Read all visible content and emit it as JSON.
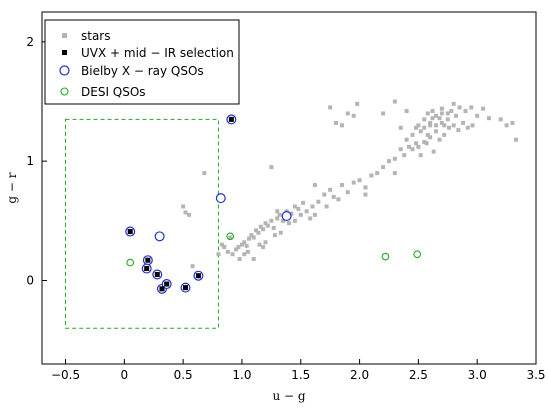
{
  "chart_data": {
    "type": "scatter",
    "xlabel": "u − g",
    "ylabel": "g − r",
    "xlim": [
      -0.7,
      3.5
    ],
    "ylim": [
      -0.7,
      2.25
    ],
    "xticks": [
      -0.5,
      0.0,
      0.5,
      1.0,
      1.5,
      2.0,
      2.5,
      3.0,
      3.5
    ],
    "xtick_labels": [
      "−0.5",
      "0",
      "0.5",
      "1.0",
      "1.5",
      "2.0",
      "2.5",
      "3.0",
      "3.5"
    ],
    "yticks": [
      0,
      1,
      2
    ],
    "ytick_labels": [
      "0",
      "1",
      "2"
    ],
    "legend": {
      "position": "top-left",
      "entries": [
        "stars",
        "UVX + mid − IR selection",
        "Bielby X − ray QSOs",
        "DESI QSOs"
      ]
    },
    "selection_box": {
      "x": [
        -0.5,
        0.8
      ],
      "y": [
        -0.4,
        1.35
      ],
      "color": "#22aa22"
    },
    "series": [
      {
        "name": "stars",
        "color": "#b4b4b4",
        "marker": "square",
        "points": [
          [
            0.5,
            0.62
          ],
          [
            0.52,
            0.57
          ],
          [
            0.55,
            0.55
          ],
          [
            0.58,
            0.12
          ],
          [
            0.62,
            0.06
          ],
          [
            0.68,
            0.9
          ],
          [
            0.8,
            0.22
          ],
          [
            0.83,
            0.3
          ],
          [
            0.85,
            0.28
          ],
          [
            0.88,
            0.24
          ],
          [
            0.9,
            0.36
          ],
          [
            0.92,
            0.22
          ],
          [
            0.95,
            0.26
          ],
          [
            0.97,
            0.28
          ],
          [
            1.0,
            0.3
          ],
          [
            1.02,
            0.32
          ],
          [
            1.04,
            0.29
          ],
          [
            1.06,
            0.35
          ],
          [
            1.08,
            0.38
          ],
          [
            1.1,
            0.36
          ],
          [
            1.12,
            0.42
          ],
          [
            1.14,
            0.4
          ],
          [
            1.16,
            0.45
          ],
          [
            1.18,
            0.43
          ],
          [
            1.2,
            0.48
          ],
          [
            1.22,
            0.46
          ],
          [
            1.25,
            0.5
          ],
          [
            1.27,
            0.44
          ],
          [
            1.3,
            0.52
          ],
          [
            1.32,
            0.55
          ],
          [
            1.35,
            0.5
          ],
          [
            1.38,
            0.58
          ],
          [
            1.42,
            0.56
          ],
          [
            1.45,
            0.62
          ],
          [
            1.48,
            0.6
          ],
          [
            1.52,
            0.65
          ],
          [
            1.55,
            0.58
          ],
          [
            1.6,
            0.62
          ],
          [
            1.62,
            0.55
          ],
          [
            1.65,
            0.66
          ],
          [
            1.7,
            0.72
          ],
          [
            1.72,
            0.62
          ],
          [
            1.75,
            0.76
          ],
          [
            1.78,
            0.7
          ],
          [
            1.82,
            0.68
          ],
          [
            1.85,
            0.8
          ],
          [
            1.9,
            0.74
          ],
          [
            1.95,
            0.82
          ],
          [
            2.0,
            0.84
          ],
          [
            2.05,
            0.78
          ],
          [
            2.1,
            0.88
          ],
          [
            2.15,
            0.9
          ],
          [
            2.2,
            0.95
          ],
          [
            2.25,
            1.0
          ],
          [
            2.3,
            1.02
          ],
          [
            2.35,
            1.1
          ],
          [
            2.38,
            1.05
          ],
          [
            2.4,
            1.18
          ],
          [
            2.42,
            1.12
          ],
          [
            2.45,
            1.22
          ],
          [
            2.48,
            1.28
          ],
          [
            2.5,
            1.3
          ],
          [
            2.52,
            1.25
          ],
          [
            2.55,
            1.35
          ],
          [
            2.58,
            1.4
          ],
          [
            2.6,
            1.32
          ],
          [
            2.62,
            1.42
          ],
          [
            2.65,
            1.38
          ],
          [
            2.68,
            1.36
          ],
          [
            2.7,
            1.44
          ],
          [
            2.72,
            1.3
          ],
          [
            2.75,
            1.4
          ],
          [
            2.78,
            1.42
          ],
          [
            2.8,
            1.48
          ],
          [
            2.82,
            1.38
          ],
          [
            2.85,
            1.45
          ],
          [
            2.9,
            1.42
          ],
          [
            2.95,
            1.45
          ],
          [
            3.0,
            1.38
          ],
          [
            3.05,
            1.44
          ],
          [
            3.1,
            1.36
          ],
          [
            3.2,
            1.35
          ],
          [
            3.25,
            1.3
          ],
          [
            3.3,
            1.32
          ],
          [
            3.33,
            1.18
          ],
          [
            2.3,
            1.5
          ],
          [
            2.4,
            1.42
          ],
          [
            2.45,
            1.1
          ],
          [
            2.5,
            1.12
          ],
          [
            2.55,
            1.16
          ],
          [
            2.6,
            1.2
          ],
          [
            2.65,
            1.25
          ],
          [
            2.7,
            1.32
          ],
          [
            2.75,
            1.35
          ],
          [
            2.35,
            1.28
          ],
          [
            2.2,
            1.4
          ],
          [
            1.98,
            1.48
          ],
          [
            1.95,
            1.38
          ],
          [
            1.9,
            1.4
          ],
          [
            1.85,
            1.3
          ],
          [
            1.8,
            1.32
          ],
          [
            1.75,
            1.45
          ],
          [
            1.3,
            0.58
          ],
          [
            1.62,
            0.8
          ],
          [
            1.25,
            0.95
          ],
          [
            1.05,
            0.24
          ],
          [
            1.1,
            0.18
          ],
          [
            1.15,
            0.3
          ],
          [
            1.18,
            0.28
          ],
          [
            0.98,
            0.18
          ],
          [
            1.02,
            0.22
          ],
          [
            1.2,
            0.32
          ],
          [
            1.28,
            0.38
          ],
          [
            1.33,
            0.4
          ],
          [
            1.4,
            0.48
          ],
          [
            1.45,
            0.5
          ],
          [
            1.5,
            0.55
          ],
          [
            1.58,
            0.52
          ],
          [
            2.05,
            0.72
          ],
          [
            2.3,
            0.9
          ],
          [
            2.52,
            1.05
          ],
          [
            2.57,
            1.15
          ],
          [
            2.63,
            1.08
          ],
          [
            2.68,
            1.18
          ],
          [
            2.72,
            1.22
          ],
          [
            2.76,
            1.28
          ],
          [
            2.8,
            1.3
          ],
          [
            2.84,
            1.26
          ],
          [
            2.88,
            1.32
          ],
          [
            2.92,
            1.28
          ],
          [
            2.96,
            1.3
          ],
          [
            2.6,
            1.3
          ],
          [
            2.65,
            1.3
          ],
          [
            2.7,
            1.4
          ],
          [
            2.55,
            1.28
          ],
          [
            2.58,
            1.22
          ],
          [
            2.62,
            1.36
          ],
          [
            2.48,
            1.15
          ]
        ]
      },
      {
        "name": "UVX + mid − IR selection",
        "color": "#000000",
        "marker": "filled-square",
        "points": [
          [
            0.05,
            0.41
          ],
          [
            0.2,
            0.17
          ],
          [
            0.19,
            0.1
          ],
          [
            0.28,
            0.05
          ],
          [
            0.32,
            -0.07
          ],
          [
            0.36,
            -0.03
          ],
          [
            0.52,
            -0.06
          ],
          [
            0.63,
            0.04
          ],
          [
            0.91,
            1.35
          ]
        ]
      },
      {
        "name": "Bielby X − ray QSOs",
        "color": "#1f2fc8",
        "marker": "open-circle",
        "points": [
          [
            0.05,
            0.41
          ],
          [
            0.2,
            0.17
          ],
          [
            0.19,
            0.1
          ],
          [
            0.28,
            0.05
          ],
          [
            0.32,
            -0.07
          ],
          [
            0.36,
            -0.03
          ],
          [
            0.52,
            -0.06
          ],
          [
            0.63,
            0.04
          ],
          [
            0.91,
            1.35
          ],
          [
            0.3,
            0.37
          ],
          [
            0.82,
            0.69
          ],
          [
            1.38,
            0.54
          ]
        ]
      },
      {
        "name": "DESI QSOs",
        "color": "#22aa22",
        "marker": "open-circle",
        "points": [
          [
            0.05,
            0.15
          ],
          [
            0.9,
            0.37
          ],
          [
            2.22,
            0.2
          ],
          [
            2.49,
            0.22
          ]
        ]
      }
    ]
  }
}
